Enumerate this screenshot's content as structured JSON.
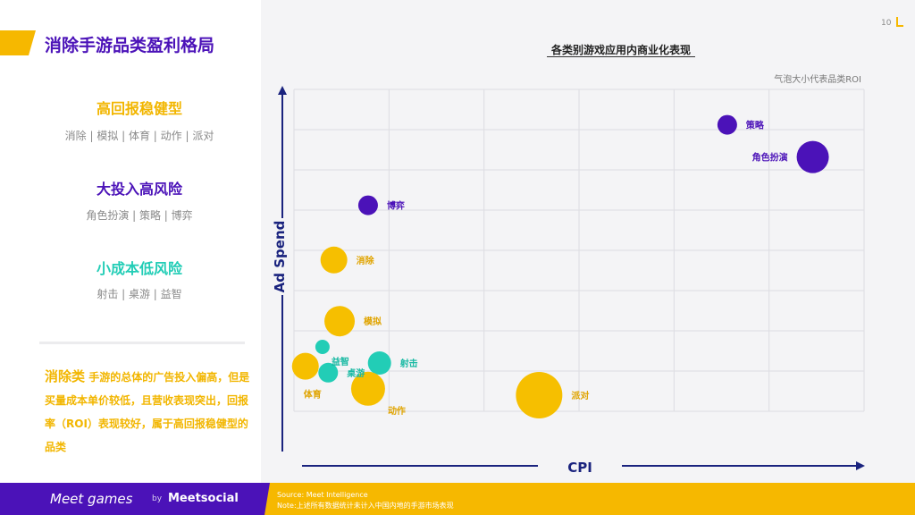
{
  "page": {
    "title": "消除手游品类盈利格局",
    "page_number": "10"
  },
  "categories": [
    {
      "title": "高回报稳健型",
      "items": "消除 | 模拟 | 体育 | 动作 | 派对",
      "color": "#f2b600"
    },
    {
      "title": "大投入高风险",
      "items": "角色扮演 | 策略 | 博弈",
      "color": "#4b12b8"
    },
    {
      "title": "小成本低风险",
      "items": "射击 | 桌游 | 益智",
      "color": "#22cdb6"
    }
  ],
  "description": {
    "highlight": "消除类",
    "text": "手游的总体的广告投入偏高，但是买量成本单价较低，且营收表现突出，回报率（ROI）表现较好，属于高回报稳健型的品类"
  },
  "chart_data": {
    "type": "bubble",
    "title": "各类别游戏应用内商业化表现",
    "note": "气泡大小代表品类ROI",
    "xlabel": "CPI",
    "ylabel": "Ad Spend",
    "xlim": [
      0,
      100
    ],
    "ylim": [
      0,
      100
    ],
    "grid": true,
    "legend": "none",
    "colors": {
      "high_return": "#f6bf00",
      "high_risk": "#4b12b8",
      "low_risk": "#22cdb6"
    },
    "points": [
      {
        "name": "策略",
        "x": 76,
        "y": 89,
        "size": 11,
        "group": "high_risk"
      },
      {
        "name": "角色扮演",
        "x": 91,
        "y": 79,
        "size": 18,
        "group": "high_risk"
      },
      {
        "name": "博弈",
        "x": 13,
        "y": 64,
        "size": 11,
        "group": "high_risk"
      },
      {
        "name": "消除",
        "x": 7,
        "y": 47,
        "size": 15,
        "group": "high_return"
      },
      {
        "name": "模拟",
        "x": 8,
        "y": 28,
        "size": 17,
        "group": "high_return"
      },
      {
        "name": "益智",
        "x": 5,
        "y": 20,
        "size": 8,
        "group": "low_risk"
      },
      {
        "name": "体育",
        "x": 2,
        "y": 14,
        "size": 15,
        "group": "high_return"
      },
      {
        "name": "桌游",
        "x": 6,
        "y": 12,
        "size": 11,
        "group": "low_risk"
      },
      {
        "name": "射击",
        "x": 15,
        "y": 15,
        "size": 13,
        "group": "low_risk"
      },
      {
        "name": "动作",
        "x": 13,
        "y": 7,
        "size": 19,
        "group": "high_return"
      },
      {
        "name": "派对",
        "x": 43,
        "y": 5,
        "size": 26,
        "group": "high_return"
      }
    ]
  },
  "footer": {
    "logo_main": "Meet games",
    "logo_by": "by",
    "logo_partner": "Meetsocial",
    "source": "Source: Meet Intelligence",
    "note": "Note:上述所有数据统计未计入中国内地的手游市场表现"
  }
}
